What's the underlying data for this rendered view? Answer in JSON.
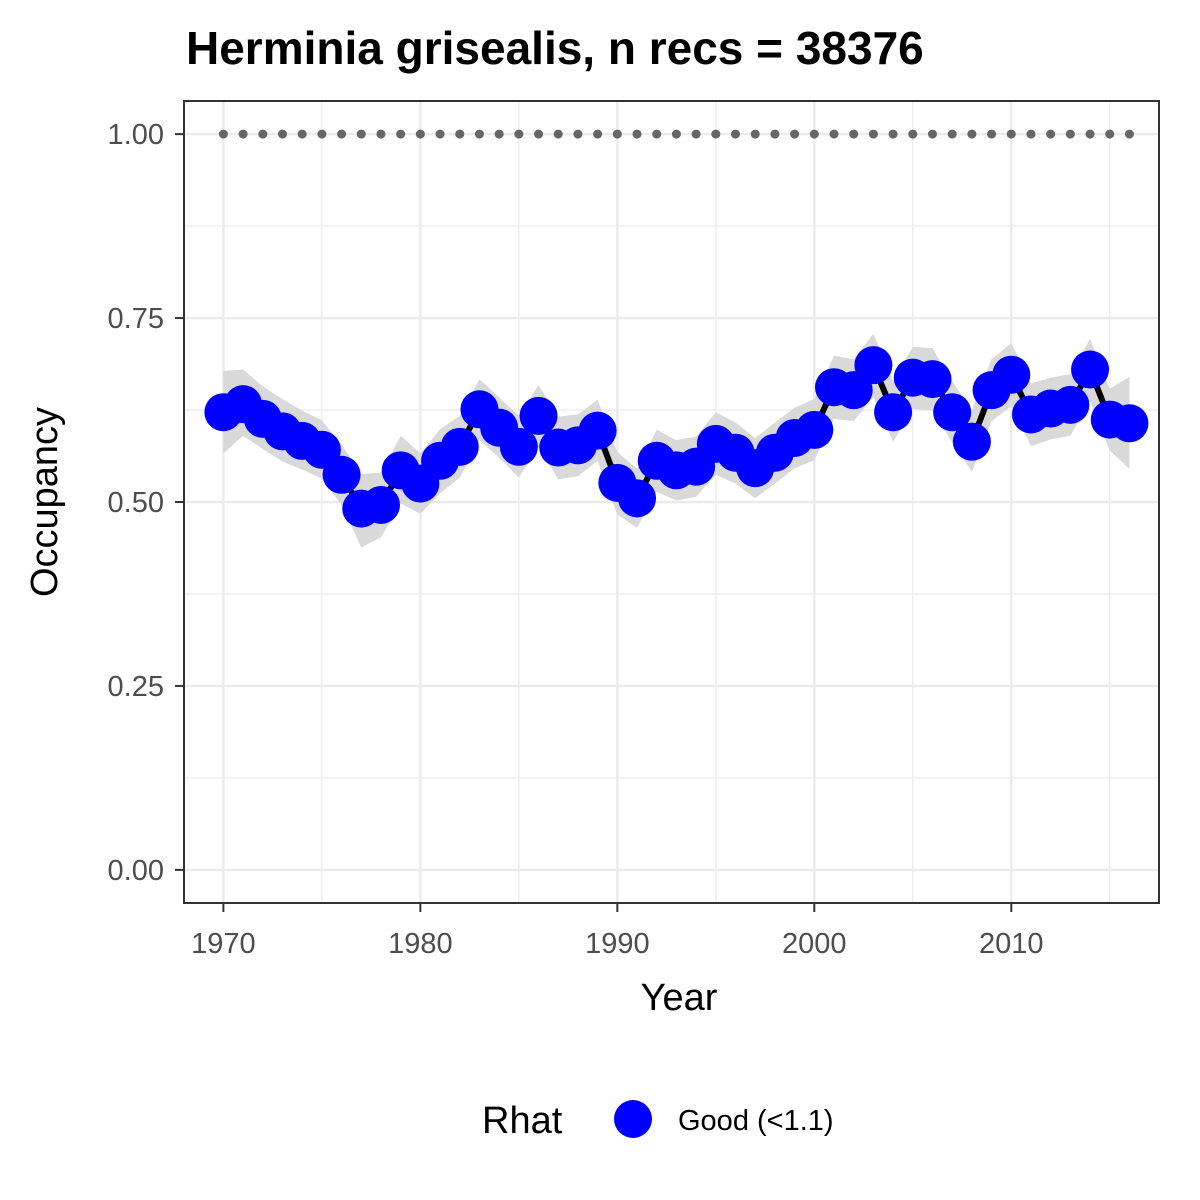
{
  "chart_data": {
    "type": "line",
    "title": "Herminia grisealis, n recs = 38376",
    "xlabel": "Year",
    "ylabel": "Occupancy",
    "xlim": [
      1968,
      2017.5
    ],
    "ylim": [
      -0.045,
      1.045
    ],
    "x_ticks": [
      1970,
      1980,
      1990,
      2000,
      2010
    ],
    "x_tick_labels": [
      "1970",
      "1980",
      "1990",
      "2000",
      "2010"
    ],
    "y_ticks": [
      0,
      0.25,
      0.5,
      0.75,
      1
    ],
    "y_tick_labels": [
      "0.00",
      "0.25",
      "0.50",
      "0.75",
      "1.00"
    ],
    "grid": true,
    "legend": {
      "title": "Rhat",
      "placement": "bottom",
      "entries": [
        {
          "label": "Good (<1.1)",
          "color": "#0000ff"
        }
      ]
    },
    "colors": {
      "points": "#0000ff",
      "line": "#000000",
      "ribbon": "#d9d9d9",
      "reference": "#666666",
      "grid": "#ebebeb",
      "panel_border": "#333333"
    },
    "series": [
      {
        "x": [
          1970,
          1971,
          1972,
          1973,
          1974,
          1975,
          1976,
          1977,
          1978,
          1979,
          1980,
          1981,
          1982,
          1983,
          1984,
          1985,
          1986,
          1987,
          1988,
          1989,
          1990,
          1991,
          1992,
          1993,
          1994,
          1995,
          1996,
          1997,
          1998,
          1999,
          2000,
          2001,
          2002,
          2003,
          2004,
          2005,
          2006,
          2007,
          2008,
          2009,
          2010,
          2011,
          2012,
          2013,
          2014,
          2015,
          2016
        ],
        "y": [
          0.622,
          0.633,
          0.613,
          0.596,
          0.583,
          0.571,
          0.537,
          0.491,
          0.496,
          0.543,
          0.525,
          0.556,
          0.575,
          0.626,
          0.601,
          0.575,
          0.617,
          0.574,
          0.577,
          0.597,
          0.526,
          0.505,
          0.556,
          0.543,
          0.548,
          0.579,
          0.567,
          0.546,
          0.567,
          0.587,
          0.598,
          0.656,
          0.652,
          0.686,
          0.622,
          0.669,
          0.667,
          0.622,
          0.582,
          0.652,
          0.673,
          0.619,
          0.627,
          0.632,
          0.68,
          0.612,
          0.607
        ],
        "lower": [
          0.566,
          0.59,
          0.572,
          0.555,
          0.544,
          0.532,
          0.496,
          0.438,
          0.452,
          0.498,
          0.484,
          0.512,
          0.533,
          0.584,
          0.56,
          0.533,
          0.575,
          0.531,
          0.535,
          0.556,
          0.483,
          0.465,
          0.514,
          0.502,
          0.507,
          0.537,
          0.525,
          0.505,
          0.525,
          0.546,
          0.557,
          0.613,
          0.61,
          0.643,
          0.582,
          0.627,
          0.624,
          0.581,
          0.541,
          0.61,
          0.63,
          0.576,
          0.585,
          0.59,
          0.637,
          0.57,
          0.545
        ],
        "upper": [
          0.678,
          0.68,
          0.657,
          0.64,
          0.624,
          0.611,
          0.578,
          0.538,
          0.54,
          0.59,
          0.566,
          0.599,
          0.617,
          0.667,
          0.642,
          0.617,
          0.659,
          0.616,
          0.619,
          0.639,
          0.568,
          0.545,
          0.598,
          0.584,
          0.589,
          0.622,
          0.608,
          0.587,
          0.608,
          0.628,
          0.64,
          0.699,
          0.694,
          0.729,
          0.664,
          0.711,
          0.709,
          0.664,
          0.625,
          0.694,
          0.716,
          0.661,
          0.669,
          0.674,
          0.722,
          0.654,
          0.67
        ]
      },
      {
        "x": [
          1970,
          1971,
          1972,
          1973,
          1974,
          1975,
          1976,
          1977,
          1978,
          1979,
          1980,
          1981,
          1982,
          1983,
          1984,
          1985,
          1986,
          1987,
          1988,
          1989,
          1990,
          1991,
          1992,
          1993,
          1994,
          1995,
          1996,
          1997,
          1998,
          1999,
          2000,
          2001,
          2002,
          2003,
          2004,
          2005,
          2006,
          2007,
          2008,
          2009,
          2010,
          2011,
          2012,
          2013,
          2014,
          2015,
          2016
        ],
        "y": [
          1,
          1,
          1,
          1,
          1,
          1,
          1,
          1,
          1,
          1,
          1,
          1,
          1,
          1,
          1,
          1,
          1,
          1,
          1,
          1,
          1,
          1,
          1,
          1,
          1,
          1,
          1,
          1,
          1,
          1,
          1,
          1,
          1,
          1,
          1,
          1,
          1,
          1,
          1,
          1,
          1,
          1,
          1,
          1,
          1,
          1,
          1
        ]
      }
    ]
  }
}
